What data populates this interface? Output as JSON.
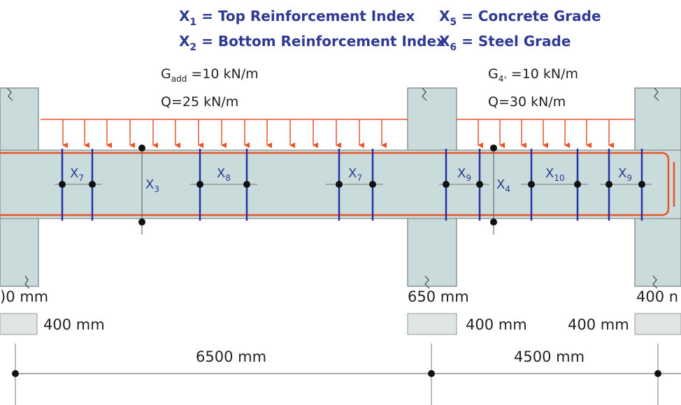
{
  "legend": {
    "x1": {
      "symbol": "X",
      "sub": "1",
      "text": " = Top Reinforcement Index"
    },
    "x2": {
      "symbol": "X",
      "sub": "2",
      "text": " = Bottom Reinforcement Index"
    },
    "x5": {
      "symbol": "X",
      "sub": "5",
      "text": " = Concrete Grade"
    },
    "x6": {
      "symbol": "X",
      "sub": "6",
      "text": " = Steel Grade"
    }
  },
  "loads": {
    "span1_g": {
      "symbol": "G",
      "sub": "add",
      "text": " =10 kN/m"
    },
    "span1_q": "Q=25 kN/m",
    "span2_g": {
      "symbol": "G",
      "sub": "4ᵌ",
      "text": " =10 kN/m"
    },
    "span2_q": "Q=30 kN/m"
  },
  "variables": {
    "x7a": {
      "symbol": "X",
      "sub": "7"
    },
    "x3": {
      "symbol": "X",
      "sub": "3"
    },
    "x8": {
      "symbol": "X",
      "sub": "8"
    },
    "x7b": {
      "symbol": "X",
      "sub": "7"
    },
    "x9a": {
      "symbol": "X",
      "sub": "9"
    },
    "x4": {
      "symbol": "X",
      "sub": "4"
    },
    "x10": {
      "symbol": "X",
      "sub": "10"
    },
    "x9b": {
      "symbol": "X",
      "sub": "9"
    }
  },
  "dimensions": {
    "col_left_width": ")0 mm",
    "col_left_depth": "400 mm",
    "col_mid_width": "650 mm",
    "col_mid_depth": "400 mm",
    "col_right_depth": "400 mm",
    "col_right_width": "400 n",
    "span1": "6500 mm",
    "span2": "4500 mm"
  },
  "colors": {
    "concrete": "#c9dcdb",
    "load_arrow": "#e8542a",
    "rebar": "#e8542a",
    "section_line": "#2631a8",
    "text_blue": "#2e3a94"
  }
}
